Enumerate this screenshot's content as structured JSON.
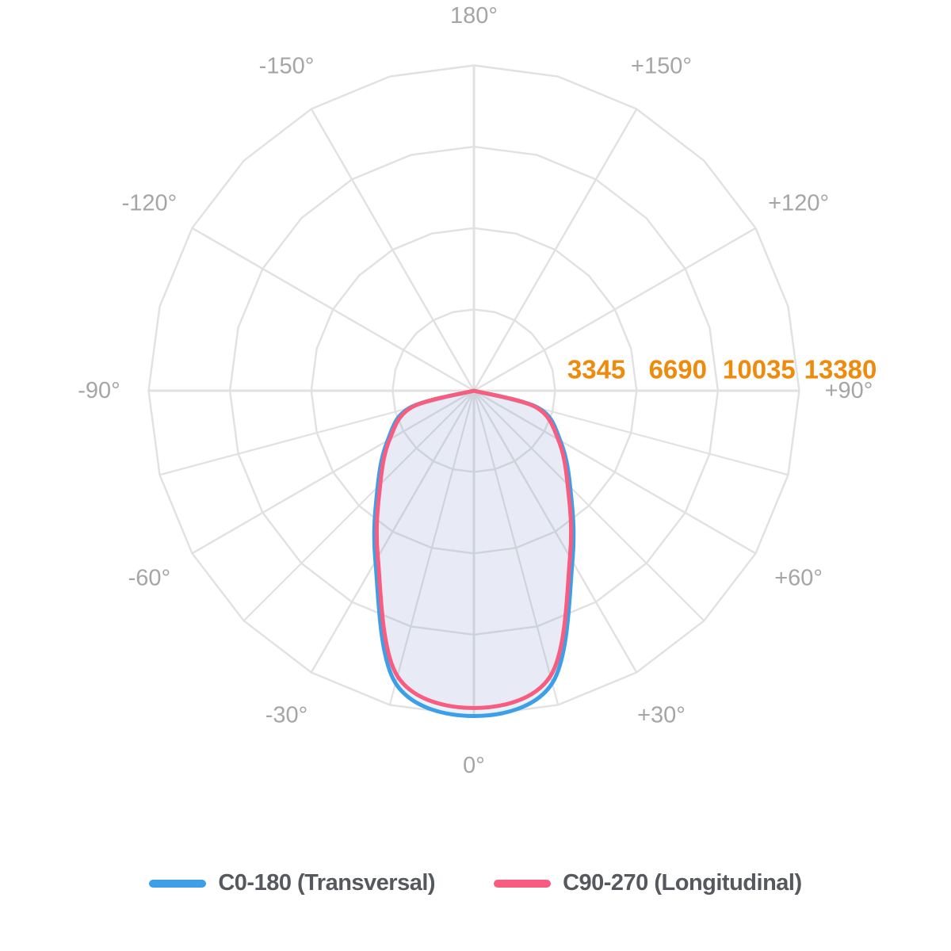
{
  "chart_data": {
    "type": "line",
    "subtype": "polar-photometric-distribution",
    "orientation": {
      "zero_position": "bottom",
      "positive_direction": "clockwise"
    },
    "angle_axis": {
      "unit": "deg",
      "major_step_deg": 30,
      "minor_step_deg_lower_half": 15,
      "labels": [
        {
          "deg": 0,
          "label": "0°"
        },
        {
          "deg": 30,
          "label": "+30°"
        },
        {
          "deg": 60,
          "label": "+60°"
        },
        {
          "deg": 90,
          "label": "+90°"
        },
        {
          "deg": 120,
          "label": "+120°"
        },
        {
          "deg": 150,
          "label": "+150°"
        },
        {
          "deg": 180,
          "label": "180°"
        },
        {
          "deg": -150,
          "label": "-150°"
        },
        {
          "deg": -120,
          "label": "-120°"
        },
        {
          "deg": -90,
          "label": "-90°"
        },
        {
          "deg": -60,
          "label": "-60°"
        },
        {
          "deg": -30,
          "label": "-30°"
        }
      ]
    },
    "radius_axis": {
      "max": 13380,
      "ticks": [
        {
          "value": 3345,
          "label": "3345"
        },
        {
          "value": 6690,
          "label": "6690"
        },
        {
          "value": 10035,
          "label": "10035"
        },
        {
          "value": 13380,
          "label": "13380"
        }
      ],
      "label_color": "#ee8a0c"
    },
    "series": [
      {
        "name": "C0-180 (Transversal)",
        "color": "#3d9fe8",
        "fill": "rgba(66,160,232,0.13)",
        "points": [
          {
            "angle": -90,
            "value": 0
          },
          {
            "angle": -75,
            "value": 2750
          },
          {
            "angle": -60,
            "value": 4100
          },
          {
            "angle": -45,
            "value": 5600
          },
          {
            "angle": -30,
            "value": 8100
          },
          {
            "angle": -15,
            "value": 12450
          },
          {
            "angle": 0,
            "value": 13380
          },
          {
            "angle": 15,
            "value": 12450
          },
          {
            "angle": 30,
            "value": 8100
          },
          {
            "angle": 45,
            "value": 5600
          },
          {
            "angle": 60,
            "value": 4100
          },
          {
            "angle": 75,
            "value": 2750
          },
          {
            "angle": 90,
            "value": 0
          }
        ]
      },
      {
        "name": "C90-270 (Longitudinal)",
        "color": "#f85c7e",
        "fill": "rgba(248,92,126,0.05)",
        "points": [
          {
            "angle": -90,
            "value": 0
          },
          {
            "angle": -75,
            "value": 2650
          },
          {
            "angle": -60,
            "value": 4000
          },
          {
            "angle": -45,
            "value": 5450
          },
          {
            "angle": -30,
            "value": 7900
          },
          {
            "angle": -15,
            "value": 12150
          },
          {
            "angle": 0,
            "value": 13050
          },
          {
            "angle": 15,
            "value": 12150
          },
          {
            "angle": 30,
            "value": 7900
          },
          {
            "angle": 45,
            "value": 5450
          },
          {
            "angle": 60,
            "value": 4000
          },
          {
            "angle": 75,
            "value": 2650
          },
          {
            "angle": 90,
            "value": 0
          }
        ]
      }
    ],
    "grid_color": "#e1e1e1",
    "angle_label_color": "#a5a5a5"
  },
  "legend": {
    "items": [
      {
        "label": "C0-180 (Transversal)",
        "color": "#3d9fe8"
      },
      {
        "label": "C90-270 (Longitudinal)",
        "color": "#f85c7e"
      }
    ]
  }
}
